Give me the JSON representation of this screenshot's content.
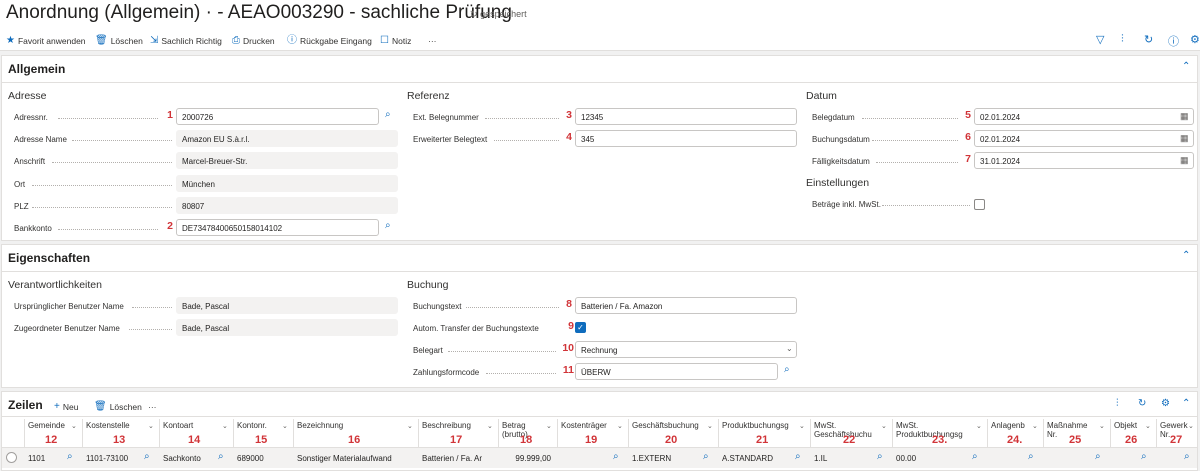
{
  "header": {
    "title": "Anordnung (Allgemein) · - AEAO003290 - sachliche Prüfung",
    "saved_status": "gespeichert"
  },
  "toolbar": {
    "favorit": "Favorit anwenden",
    "loeschen": "Löschen",
    "sachlich": "Sachlich Richtig",
    "drucken": "Drucken",
    "rueckgabe": "Rückgabe Eingang",
    "notiz": "Notiz",
    "more": "···"
  },
  "allgemein": {
    "title": "Allgemein",
    "adresse": {
      "title": "Adresse",
      "adressnr_label": "Adressnr.",
      "adressnr_num": "1",
      "adressnr_value": "2000726",
      "name_label": "Adresse Name",
      "name_value": "Amazon EU S.à.r.l.",
      "anschrift_label": "Anschrift",
      "anschrift_value": "Marcel-Breuer-Str.",
      "ort_label": "Ort",
      "ort_value": "München",
      "plz_label": "PLZ",
      "plz_value": "80807",
      "bank_label": "Bankkonto",
      "bank_num": "2",
      "bank_value": "DE73478400650158014102"
    },
    "referenz": {
      "title": "Referenz",
      "belegnr_label": "Ext. Belegnummer",
      "belegnr_num": "3",
      "belegnr_value": "12345",
      "belegtext_label": "Erweiterter Belegtext",
      "belegtext_num": "4",
      "belegtext_value": "345"
    },
    "datum": {
      "title": "Datum",
      "belegdatum_label": "Belegdatum",
      "belegdatum_num": "5",
      "belegdatum_value": "02.01.2024",
      "buchungsdatum_label": "Buchungsdatum",
      "buchungsdatum_num": "6",
      "buchungsdatum_value": "02.01.2024",
      "faellig_label": "Fälligkeitsdatum",
      "faellig_num": "7",
      "faellig_value": "31.01.2024"
    },
    "einstellungen": {
      "title": "Einstellungen",
      "mwst_label": "Beträge inkl. MwSt.",
      "mwst_checked": false
    }
  },
  "eigenschaften": {
    "title": "Eigenschaften",
    "verantwortlich": {
      "title": "Verantwortlichkeiten",
      "urspr_label": "Ursprünglicher Benutzer Name",
      "urspr_value": "Bade, Pascal",
      "zugeord_label": "Zugeordneter Benutzer Name",
      "zugeord_value": "Bade, Pascal"
    },
    "buchung": {
      "title": "Buchung",
      "text_label": "Buchungstext",
      "text_num": "8",
      "text_value": "Batterien / Fa. Amazon",
      "transfer_label": "Autom. Transfer der Buchungstexte",
      "transfer_num": "9",
      "transfer_checked": true,
      "belegart_label": "Belegart",
      "belegart_num": "10",
      "belegart_value": "Rechnung",
      "zahlung_label": "Zahlungsformcode",
      "zahlung_num": "11",
      "zahlung_value": "ÜBERW"
    }
  },
  "zeilen": {
    "title": "Zeilen",
    "neu": "Neu",
    "loeschen": "Löschen",
    "more": "···",
    "columns": [
      {
        "l1": "Gemeinde",
        "l2": "",
        "num": "12"
      },
      {
        "l1": "Kostenstelle",
        "l2": "",
        "num": "13"
      },
      {
        "l1": "Kontoart",
        "l2": "",
        "num": "14"
      },
      {
        "l1": "Kontonr.",
        "l2": "",
        "num": "15"
      },
      {
        "l1": "Bezeichnung",
        "l2": "",
        "num": "16"
      },
      {
        "l1": "Beschreibung",
        "l2": "",
        "num": "17"
      },
      {
        "l1": "Betrag",
        "l2": "(brutto)",
        "num": "18"
      },
      {
        "l1": "Kostenträger",
        "l2": "",
        "num": "19"
      },
      {
        "l1": "Geschäftsbuchung",
        "l2": "",
        "num": "20"
      },
      {
        "l1": "Produktbuchungsg",
        "l2": "",
        "num": "21"
      },
      {
        "l1": "MwSt.",
        "l2": "Geschäftsbuchu",
        "num": "22"
      },
      {
        "l1": "MwSt.",
        "l2": "Produktbuchungsg",
        "num": "23."
      },
      {
        "l1": "Anlagenb",
        "l2": "",
        "num": "24."
      },
      {
        "l1": "Maßnahme",
        "l2": "Nr.",
        "num": "25"
      },
      {
        "l1": "Objekt",
        "l2": "",
        "num": "26"
      },
      {
        "l1": "Gewerk",
        "l2": "Nr.",
        "num": "27"
      }
    ],
    "row": [
      "1101",
      "1101-73100",
      "Sachkonto",
      "689000",
      "Sonstiger Materialaufwand",
      "Batterien / Fa. Ama",
      "99.999,00",
      "",
      "1.EXTERN",
      "A.STANDARD",
      "1.IL",
      "00.00",
      "",
      "",
      "",
      ""
    ]
  }
}
